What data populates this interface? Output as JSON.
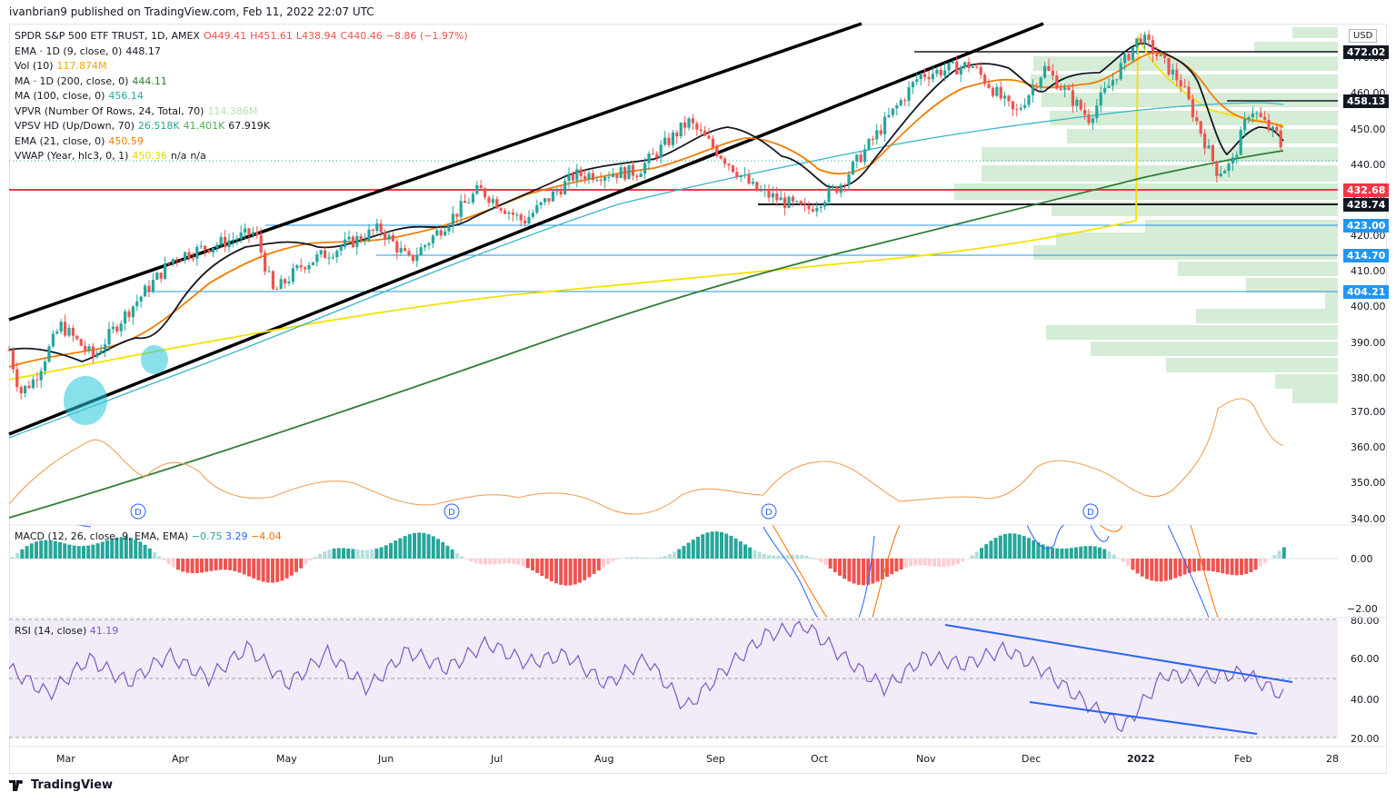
{
  "publish_line": "ivanbrian9 published on TradingView.com, Feb 11, 2022 22:07 UTC",
  "currency": "USD",
  "brand": "TradingView",
  "legend": [
    {
      "label": "SPDR S&P 500 ETF TRUST, 1D, AMEX",
      "values": [
        {
          "text": "O449.41",
          "color": "#ef5350"
        },
        {
          "text": "H451.61",
          "color": "#ef5350"
        },
        {
          "text": "L438.94",
          "color": "#ef5350"
        },
        {
          "text": "C440.46",
          "color": "#ef5350"
        },
        {
          "text": "−8.86 (−1.97%)",
          "color": "#ef5350"
        }
      ]
    },
    {
      "label": "EMA · 1D (9, close, 0)",
      "values": [
        {
          "text": "448.17",
          "color": "#131722"
        }
      ]
    },
    {
      "label": "Vol (10)",
      "values": [
        {
          "text": "117.874M",
          "color": "#f7a600"
        }
      ]
    },
    {
      "label": "MA · 1D (200, close, 0)",
      "values": [
        {
          "text": "444.11",
          "color": "#2e7d32"
        }
      ]
    },
    {
      "label": "MA (100, close, 0)",
      "values": [
        {
          "text": "456.14",
          "color": "#26a69a"
        }
      ]
    },
    {
      "label": "VPVR (Number Of Rows, 24, Total, 70)",
      "values": [
        {
          "text": "114.386M",
          "color": "#b7e1b0"
        }
      ]
    },
    {
      "label": "VPSV HD (Up/Down, 70)",
      "values": [
        {
          "text": "26.518K",
          "color": "#26a69a"
        },
        {
          "text": "41.401K",
          "color": "#4caf50"
        },
        {
          "text": "67.919K",
          "color": "#131722"
        }
      ]
    },
    {
      "label": "EMA (21, close, 0)",
      "values": [
        {
          "text": "450.59",
          "color": "#f57c00"
        }
      ]
    },
    {
      "label": "VWAP (Year, hlc3, 0, 1)",
      "values": [
        {
          "text": "450.36",
          "color": "#e6d800"
        },
        {
          "text": "n/a",
          "color": "#131722"
        },
        {
          "text": "n/a",
          "color": "#131722"
        }
      ]
    }
  ],
  "macd_label": {
    "name": "MACD (12, 26, close, 9, EMA, EMA)",
    "v1": "−0.75",
    "v2": "3.29",
    "v3": "−4.04"
  },
  "rsi_label": {
    "name": "RSI (14, close)",
    "value": "41.19"
  },
  "price_tags": [
    {
      "text": "472.02",
      "color": "#131722"
    },
    {
      "text": "458.13",
      "color": "#131722"
    },
    {
      "text": "432.68",
      "color": "#f23645"
    },
    {
      "text": "428.74",
      "color": "#131722"
    },
    {
      "text": "423.00",
      "color": "#2196f3"
    },
    {
      "text": "414.70",
      "color": "#2196f3"
    },
    {
      "text": "404.21",
      "color": "#2196f3"
    }
  ],
  "dividend_marker": "D",
  "chart_data": {
    "type": "candlestick",
    "symbol": "SPDR S&P 500 ETF TRUST",
    "interval": "1D",
    "exchange": "AMEX",
    "price_axis": {
      "ticks": [
        470,
        460,
        450,
        440,
        430,
        420,
        410,
        400,
        390,
        380,
        370,
        360,
        350,
        340
      ],
      "range": [
        336,
        478
      ],
      "grid": false
    },
    "time_axis": {
      "ticks": [
        "Mar",
        "Apr",
        "May",
        "Jun",
        "Jul",
        "Aug",
        "Sep",
        "Oct",
        "Nov",
        "Dec",
        "2022",
        "Feb",
        "28"
      ]
    },
    "close_series": [
      {
        "date": "2021-03-01",
        "close": 389
      },
      {
        "date": "2021-03-04",
        "close": 377
      },
      {
        "date": "2021-03-08",
        "close": 381
      },
      {
        "date": "2021-03-15",
        "close": 396
      },
      {
        "date": "2021-03-24",
        "close": 387
      },
      {
        "date": "2021-03-31",
        "close": 397
      },
      {
        "date": "2021-04-15",
        "close": 415
      },
      {
        "date": "2021-05-07",
        "close": 422
      },
      {
        "date": "2021-05-12",
        "close": 405
      },
      {
        "date": "2021-05-20",
        "close": 413
      },
      {
        "date": "2021-06-10",
        "close": 423
      },
      {
        "date": "2021-06-18",
        "close": 414
      },
      {
        "date": "2021-07-07",
        "close": 434
      },
      {
        "date": "2021-07-19",
        "close": 425
      },
      {
        "date": "2021-08-02",
        "close": 438
      },
      {
        "date": "2021-08-19",
        "close": 439
      },
      {
        "date": "2021-09-02",
        "close": 453
      },
      {
        "date": "2021-09-20",
        "close": 434
      },
      {
        "date": "2021-10-04",
        "close": 428
      },
      {
        "date": "2021-10-13",
        "close": 435
      },
      {
        "date": "2021-11-04",
        "close": 466
      },
      {
        "date": "2021-11-18",
        "close": 469
      },
      {
        "date": "2021-11-30",
        "close": 455
      },
      {
        "date": "2021-12-08",
        "close": 468
      },
      {
        "date": "2021-12-20",
        "close": 454
      },
      {
        "date": "2022-01-03",
        "close": 477
      },
      {
        "date": "2022-01-14",
        "close": 464
      },
      {
        "date": "2022-01-24",
        "close": 439
      },
      {
        "date": "2022-01-28",
        "close": 441
      },
      {
        "date": "2022-02-02",
        "close": 457
      },
      {
        "date": "2022-02-08",
        "close": 450
      },
      {
        "date": "2022-02-10",
        "close": 449
      },
      {
        "date": "2022-02-11",
        "close": 440.46
      }
    ],
    "horizontal_levels": [
      472.02,
      458.13,
      432.68,
      428.74,
      423.0,
      414.7,
      404.21
    ],
    "macd_axis": {
      "ticks": [
        "0.00",
        "−2.00"
      ]
    },
    "rsi_axis": {
      "ticks": [
        "80.00",
        "60.00",
        "40.00",
        "20.00"
      ],
      "bands": [
        70,
        30
      ]
    },
    "rsi_values": [
      55,
      42,
      60,
      48,
      62,
      50,
      66,
      47,
      63,
      45,
      64,
      55,
      68,
      58,
      62,
      47,
      60,
      35,
      55,
      72,
      77,
      60,
      45,
      61,
      57,
      65,
      54,
      38,
      25,
      52,
      50,
      53,
      41.19
    ]
  }
}
